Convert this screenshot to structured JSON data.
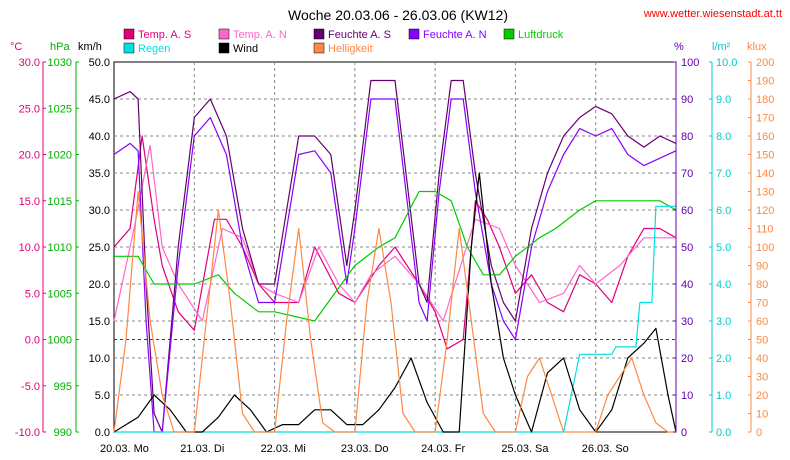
{
  "header": {
    "title": "Woche 20.03.06 - 26.03.06 (KW12)",
    "source": "www.wetter.wiesenstadt.at.tt"
  },
  "legend": [
    {
      "name": "Temp. A. S",
      "color": "#e0007a"
    },
    {
      "name": "Temp. A. N",
      "color": "#ff66cc"
    },
    {
      "name": "Feuchte A. S",
      "color": "#66006f"
    },
    {
      "name": "Feuchte A. N",
      "color": "#8800ff"
    },
    {
      "name": "Luftdruck",
      "color": "#00cc00"
    },
    {
      "name": "Regen",
      "color": "#00e0e0"
    },
    {
      "name": "Wind",
      "color": "#000000"
    },
    {
      "name": "Helligkeit",
      "color": "#ff8844"
    }
  ],
  "axes": {
    "temp": {
      "unit": "°C",
      "color": "#e0007a",
      "ticks": [
        "30.0",
        "25.0",
        "20.0",
        "15.0",
        "10.0",
        "5.0",
        "0.0",
        "-5.0",
        "-10.0"
      ]
    },
    "pressure": {
      "unit": "hPa",
      "color": "#00b000",
      "ticks": [
        "1030",
        "1025",
        "1020",
        "1015",
        "1010",
        "1005",
        "1000",
        "995",
        "990"
      ]
    },
    "wind": {
      "unit": "km/h",
      "color": "#000000",
      "ticks": [
        "50.0",
        "45.0",
        "40.0",
        "35.0",
        "30.0",
        "25.0",
        "20.0",
        "15.0",
        "10.0",
        "5.0",
        "0.0"
      ]
    },
    "humidity": {
      "unit": "%",
      "color": "#6600aa",
      "ticks": [
        "100",
        "90",
        "80",
        "70",
        "60",
        "50",
        "40",
        "30",
        "20",
        "10",
        "0"
      ]
    },
    "rain": {
      "unit": "l/m²",
      "color": "#00cccc",
      "ticks": [
        "10.0",
        "9.0",
        "8.0",
        "7.0",
        "6.0",
        "5.0",
        "4.0",
        "3.0",
        "2.0",
        "1.0",
        "0.0"
      ]
    },
    "light": {
      "unit": "klux",
      "color": "#ff8844",
      "ticks": [
        "200",
        "190",
        "180",
        "170",
        "160",
        "150",
        "140",
        "130",
        "120",
        "110",
        "100",
        "90",
        "80",
        "70",
        "60",
        "50",
        "40",
        "30",
        "20",
        "10",
        "0"
      ]
    }
  },
  "x_ticks": [
    "20.03.  Mo",
    "21.03.  Di",
    "22.03.  Mi",
    "23.03.  Do",
    "24.03.  Fr",
    "25.03.  Sa",
    "26.03.  So"
  ],
  "chart_data": {
    "type": "line",
    "x_unit": "day of week (0 = 20.03. 00:00)",
    "xlim": [
      0,
      7
    ],
    "series": [
      {
        "name": "Temp. A. S",
        "axis": "temp",
        "color": "#e0007a",
        "x": [
          0,
          0.2,
          0.35,
          0.5,
          0.6,
          0.8,
          1.0,
          1.25,
          1.4,
          1.6,
          1.8,
          2.0,
          2.3,
          2.5,
          2.8,
          3.0,
          3.3,
          3.5,
          3.8,
          4.0,
          4.15,
          4.35,
          4.5,
          4.65,
          4.8,
          5.0,
          5.2,
          5.4,
          5.6,
          5.8,
          6.0,
          6.2,
          6.4,
          6.6,
          6.8,
          7.0
        ],
        "y": [
          10,
          12,
          22,
          13,
          8,
          3,
          1,
          13,
          13,
          10,
          6,
          4,
          4,
          10,
          5,
          4,
          8,
          10,
          6,
          3,
          -1,
          0,
          15,
          13,
          10,
          5,
          7,
          4,
          3,
          7,
          6,
          4,
          9,
          12,
          12,
          11
        ]
      },
      {
        "name": "Temp. A. N",
        "axis": "temp",
        "color": "#ff66cc",
        "x": [
          0,
          0.25,
          0.45,
          0.6,
          0.8,
          1.1,
          1.35,
          1.6,
          1.8,
          2.0,
          2.3,
          2.55,
          2.8,
          3.0,
          3.2,
          3.5,
          3.8,
          4.1,
          4.5,
          4.8,
          5.0,
          5.3,
          5.6,
          5.8,
          6.0,
          6.3,
          6.6,
          6.8,
          7.0
        ],
        "y": [
          2,
          12,
          21,
          10,
          6,
          2,
          12,
          11,
          6,
          5,
          4,
          10,
          6,
          4,
          7,
          9,
          6,
          2,
          13,
          12,
          8,
          4,
          5,
          8,
          6,
          8,
          11,
          11,
          11
        ]
      },
      {
        "name": "Feuchte A. S",
        "axis": "humidity",
        "color": "#66006f",
        "x": [
          0,
          0.2,
          0.3,
          0.4,
          0.5,
          0.6,
          0.8,
          1.0,
          1.2,
          1.4,
          1.6,
          1.8,
          2.0,
          2.3,
          2.5,
          2.7,
          2.9,
          3.0,
          3.2,
          3.35,
          3.5,
          3.8,
          3.9,
          4.05,
          4.2,
          4.35,
          4.5,
          4.7,
          4.85,
          5.0,
          5.2,
          5.4,
          5.6,
          5.8,
          6.0,
          6.2,
          6.4,
          6.6,
          6.8,
          7.0
        ],
        "y": [
          90,
          92,
          90,
          40,
          5,
          0,
          50,
          85,
          90,
          80,
          55,
          40,
          40,
          80,
          80,
          75,
          45,
          60,
          95,
          95,
          95,
          40,
          35,
          70,
          95,
          95,
          70,
          45,
          35,
          30,
          55,
          70,
          80,
          85,
          88,
          86,
          80,
          77,
          80,
          78
        ]
      },
      {
        "name": "Feuchte A. N",
        "axis": "humidity",
        "color": "#8800ff",
        "x": [
          0,
          0.2,
          0.3,
          0.4,
          0.5,
          0.6,
          0.8,
          1.0,
          1.2,
          1.4,
          1.6,
          1.8,
          2.0,
          2.3,
          2.5,
          2.7,
          2.9,
          3.0,
          3.2,
          3.35,
          3.5,
          3.8,
          3.9,
          4.05,
          4.2,
          4.35,
          4.5,
          4.7,
          4.85,
          5.0,
          5.2,
          5.4,
          5.6,
          5.8,
          6.0,
          6.2,
          6.4,
          6.6,
          6.8,
          7.0
        ],
        "y": [
          75,
          78,
          76,
          30,
          0,
          0,
          45,
          80,
          85,
          75,
          50,
          35,
          35,
          75,
          76,
          70,
          40,
          55,
          90,
          90,
          90,
          35,
          30,
          65,
          90,
          90,
          65,
          40,
          30,
          25,
          50,
          65,
          75,
          82,
          80,
          82,
          75,
          72,
          74,
          76
        ]
      },
      {
        "name": "Luftdruck",
        "axis": "pressure",
        "color": "#00cc00",
        "x": [
          0,
          0.3,
          0.5,
          0.8,
          1.0,
          1.3,
          1.5,
          1.8,
          2.0,
          2.5,
          3.0,
          3.3,
          3.5,
          3.8,
          4.0,
          4.2,
          4.4,
          4.6,
          4.8,
          5.0,
          5.3,
          5.5,
          5.8,
          6.0,
          6.3,
          6.6,
          6.8,
          7.0
        ],
        "y": [
          1009,
          1009,
          1006,
          1006,
          1006,
          1007,
          1005,
          1003,
          1003,
          1002,
          1008,
          1010,
          1011,
          1016,
          1016,
          1015,
          1010,
          1007,
          1007,
          1009,
          1011,
          1012,
          1014,
          1015,
          1015,
          1015,
          1015,
          1014
        ]
      },
      {
        "name": "Regen",
        "axis": "rain",
        "color": "#00e0e0",
        "x": [
          0,
          5.6,
          5.8,
          6.2,
          6.25,
          6.5,
          6.55,
          6.7,
          6.75,
          7.0
        ],
        "y": [
          0,
          0,
          2.1,
          2.1,
          2.3,
          2.3,
          3.5,
          3.5,
          6.1,
          6.1
        ]
      },
      {
        "name": "Wind",
        "axis": "wind",
        "color": "#000000",
        "x": [
          0,
          0.3,
          0.5,
          0.7,
          0.9,
          1.1,
          1.3,
          1.5,
          1.7,
          1.9,
          2.1,
          2.3,
          2.5,
          2.7,
          2.9,
          3.1,
          3.3,
          3.5,
          3.7,
          3.9,
          4.1,
          4.3,
          4.45,
          4.55,
          4.7,
          4.85,
          5.0,
          5.2,
          5.4,
          5.6,
          5.8,
          6.0,
          6.2,
          6.4,
          6.6,
          6.75,
          6.9,
          7.0
        ],
        "y": [
          0,
          2,
          5,
          3,
          0,
          0,
          2,
          5,
          3,
          0,
          1,
          1,
          3,
          3,
          1,
          1,
          3,
          6,
          10,
          4,
          0,
          0,
          25,
          35,
          20,
          10,
          5,
          0,
          8,
          10,
          3,
          0,
          3,
          10,
          12,
          14,
          5,
          0
        ]
      },
      {
        "name": "Helligkeit",
        "axis": "light",
        "color": "#ff8844",
        "x": [
          0,
          0.15,
          0.3,
          0.45,
          0.6,
          0.75,
          0.9,
          1.0,
          1.15,
          1.3,
          1.45,
          1.6,
          1.75,
          1.9,
          2.0,
          2.15,
          2.3,
          2.45,
          2.6,
          2.75,
          2.9,
          3.0,
          3.15,
          3.3,
          3.45,
          3.6,
          3.75,
          3.9,
          4.0,
          4.15,
          4.3,
          4.45,
          4.6,
          4.75,
          4.9,
          5.0,
          5.15,
          5.3,
          5.45,
          5.6,
          5.75,
          5.9,
          6.0,
          6.15,
          6.3,
          6.45,
          6.6,
          6.75,
          6.9,
          7.0
        ],
        "y": [
          0,
          50,
          130,
          60,
          20,
          0,
          0,
          0,
          60,
          120,
          70,
          10,
          0,
          0,
          0,
          60,
          110,
          50,
          5,
          0,
          0,
          0,
          70,
          110,
          70,
          10,
          0,
          0,
          0,
          50,
          110,
          60,
          10,
          0,
          0,
          0,
          30,
          40,
          20,
          0,
          0,
          0,
          0,
          20,
          30,
          40,
          20,
          5,
          0,
          0
        ]
      }
    ]
  }
}
